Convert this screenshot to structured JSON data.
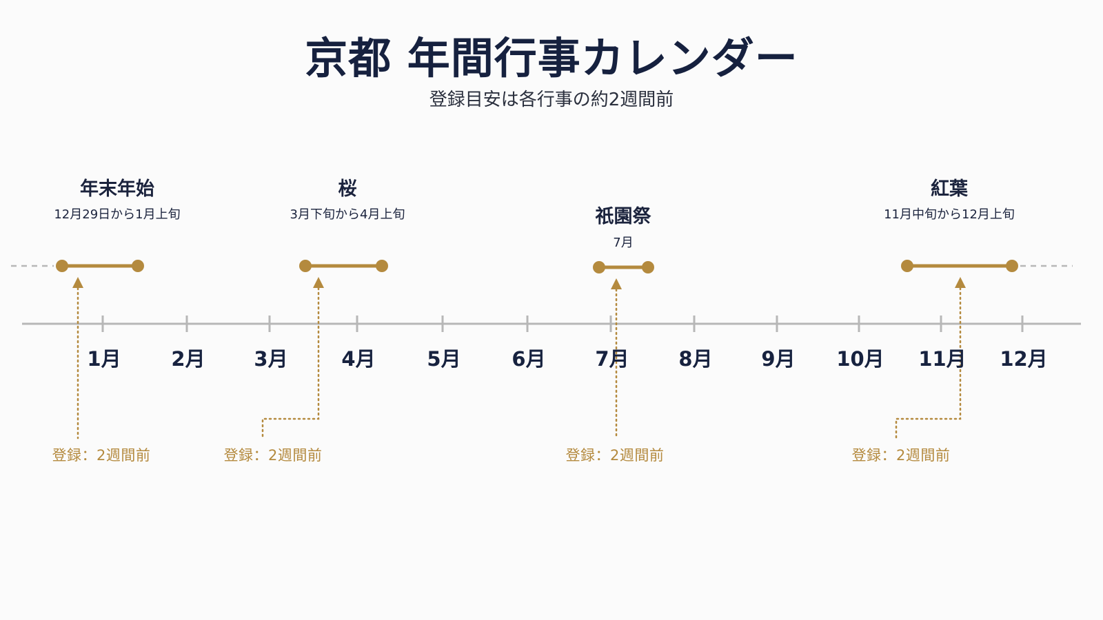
{
  "header": {
    "title": "京都 年間行事カレンダー",
    "subtitle": "登録目安は各行事の約2週間前"
  },
  "colors": {
    "accent_gold": "#b48a3e",
    "axis_gray": "#b7b7b7",
    "text_navy": "#17223f"
  },
  "months": [
    "1月",
    "2月",
    "3月",
    "4月",
    "5月",
    "6月",
    "7月",
    "8月",
    "9月",
    "10月",
    "11月",
    "12月"
  ],
  "events": [
    {
      "name": "年末年始",
      "period": "12月29日から1月上旬",
      "registration": "登録：2週間前"
    },
    {
      "name": "桜",
      "period": "3月下旬から4月上旬",
      "registration": "登録：2週間前"
    },
    {
      "name": "祇園祭",
      "period": "7月",
      "registration": "登録：2週間前"
    },
    {
      "name": "紅葉",
      "period": "11月中旬から12月上旬",
      "registration": "登録：2週間前"
    }
  ]
}
